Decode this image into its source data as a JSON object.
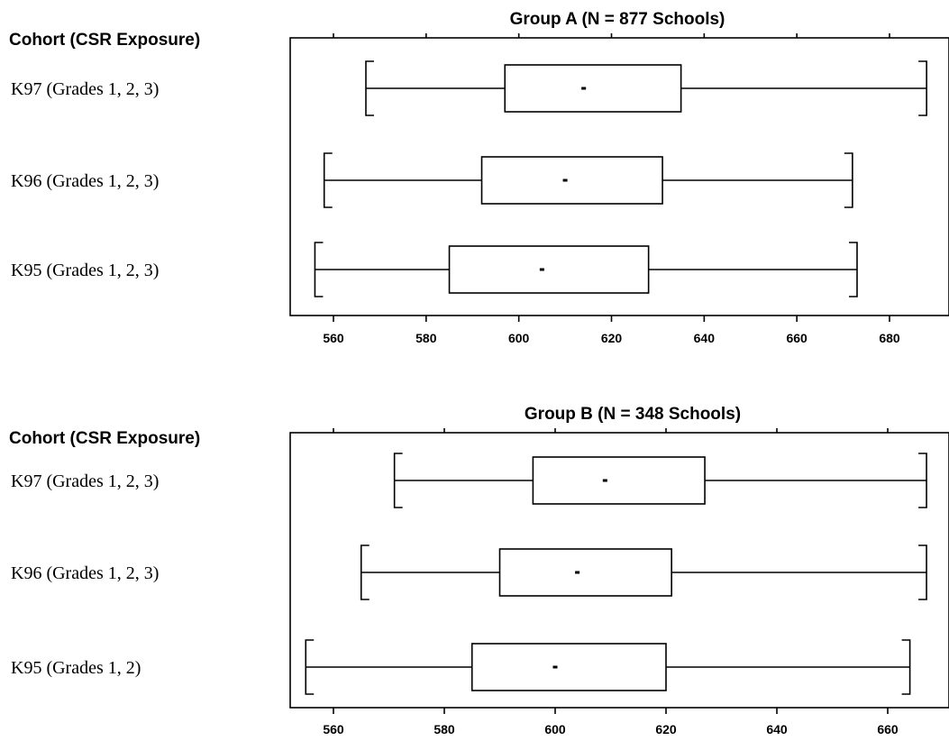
{
  "chart_data": [
    {
      "type": "boxplot",
      "orientation": "horizontal",
      "title": "Group A (N = 877 Schools)",
      "category_header": "Cohort (CSR Exposure)",
      "xlim": [
        550,
        688
      ],
      "xticks": [
        560,
        580,
        600,
        620,
        640,
        660,
        680
      ],
      "series": [
        {
          "label": "K97  (Grades 1, 2, 3)",
          "min": 567,
          "q1": 597,
          "median": 614,
          "q3": 635,
          "max": 688
        },
        {
          "label": "K96  (Grades 1, 2, 3)",
          "min": 558,
          "q1": 592,
          "median": 610,
          "q3": 631,
          "max": 672
        },
        {
          "label": "K95  (Grades 1, 2, 3)",
          "min": 556,
          "q1": 585,
          "median": 605,
          "q3": 628,
          "max": 673
        }
      ]
    },
    {
      "type": "boxplot",
      "orientation": "horizontal",
      "title": "Group B (N = 348 Schools)",
      "category_header": "Cohort (CSR Exposure)",
      "xlim": [
        550,
        667
      ],
      "xticks": [
        560,
        580,
        600,
        620,
        640,
        660
      ],
      "series": [
        {
          "label": "K97  (Grades 1, 2, 3)",
          "min": 571,
          "q1": 596,
          "median": 609,
          "q3": 627,
          "max": 667
        },
        {
          "label": "K96  (Grades 1, 2, 3)",
          "min": 565,
          "q1": 590,
          "median": 604,
          "q3": 621,
          "max": 667
        },
        {
          "label": "K95  (Grades 1, 2)",
          "min": 555,
          "q1": 585,
          "median": 600,
          "q3": 620,
          "max": 664
        }
      ]
    }
  ]
}
